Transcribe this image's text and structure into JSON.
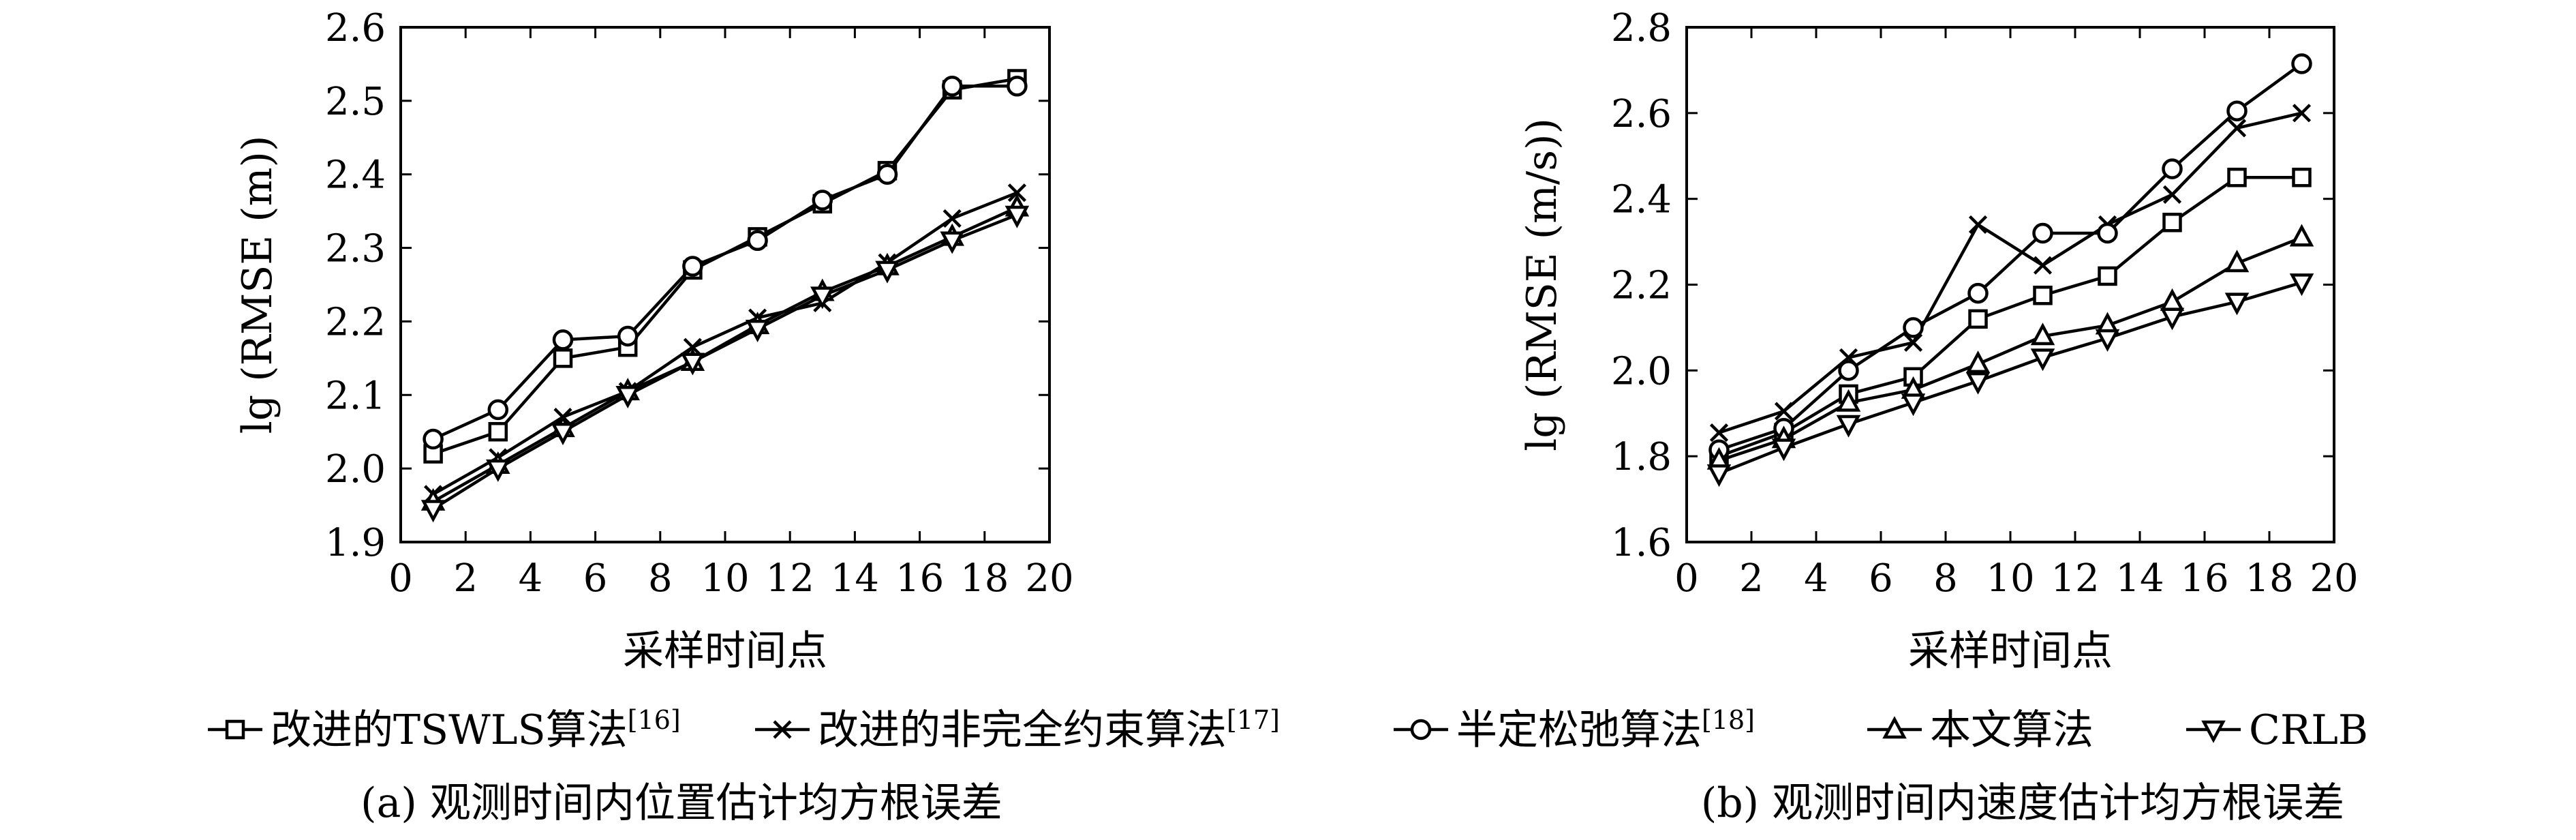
{
  "legend": [
    {
      "key": "s1",
      "label": "改进的TSWLS算法",
      "ref": "[16]",
      "marker": "square"
    },
    {
      "key": "s2",
      "label": "改进的非完全约束算法",
      "ref": "[17]",
      "marker": "cross"
    },
    {
      "key": "s3",
      "label": "半定松弛算法",
      "ref": "[18]",
      "marker": "circle"
    },
    {
      "key": "s4",
      "label": "本文算法",
      "ref": "",
      "marker": "triangle-up"
    },
    {
      "key": "s5",
      "label": "CRLB",
      "ref": "",
      "marker": "triangle-down"
    }
  ],
  "chart_data": [
    {
      "type": "line",
      "caption": "(a) 观测时间内位置估计均方根误差",
      "xlabel": "采样时间点",
      "ylabel": "lg (RMSE (m))",
      "xlim": [
        0,
        20
      ],
      "ylim": [
        1.9,
        2.6
      ],
      "xticks": [
        "0",
        "2",
        "4",
        "6",
        "8",
        "10",
        "12",
        "14",
        "16",
        "18",
        "20"
      ],
      "yticks": [
        "1.9",
        "2.0",
        "2.1",
        "2.2",
        "2.3",
        "2.4",
        "2.5",
        "2.6"
      ],
      "x": [
        1,
        3,
        5,
        7,
        9,
        11,
        13,
        15,
        17,
        19
      ],
      "series": [
        {
          "key": "s1",
          "values": [
            2.02,
            2.05,
            2.15,
            2.165,
            2.27,
            2.315,
            2.36,
            2.405,
            2.515,
            2.53
          ]
        },
        {
          "key": "s2",
          "values": [
            1.965,
            2.015,
            2.07,
            2.105,
            2.165,
            2.205,
            2.225,
            2.28,
            2.34,
            2.375
          ]
        },
        {
          "key": "s3",
          "values": [
            2.04,
            2.08,
            2.175,
            2.18,
            2.275,
            2.31,
            2.365,
            2.4,
            2.52,
            2.52
          ]
        },
        {
          "key": "s4",
          "values": [
            1.955,
            2.005,
            2.055,
            2.105,
            2.145,
            2.195,
            2.24,
            2.275,
            2.315,
            2.355
          ]
        },
        {
          "key": "s5",
          "values": [
            1.945,
            2.0,
            2.05,
            2.1,
            2.145,
            2.19,
            2.235,
            2.27,
            2.31,
            2.345
          ]
        }
      ]
    },
    {
      "type": "line",
      "caption": "(b) 观测时间内速度估计均方根误差",
      "xlabel": "采样时间点",
      "ylabel": "lg (RMSE (m/s))",
      "xlim": [
        0,
        20
      ],
      "ylim": [
        1.6,
        2.8
      ],
      "xticks": [
        "0",
        "2",
        "4",
        "6",
        "8",
        "10",
        "12",
        "14",
        "16",
        "18",
        "20"
      ],
      "yticks": [
        "1.6",
        "1.8",
        "2.0",
        "2.2",
        "2.4",
        "2.6",
        "2.8"
      ],
      "x": [
        1,
        3,
        5,
        7,
        9,
        11,
        13,
        15,
        17,
        19
      ],
      "series": [
        {
          "key": "s1",
          "values": [
            1.8,
            1.855,
            1.945,
            1.985,
            2.12,
            2.175,
            2.22,
            2.345,
            2.45,
            2.45
          ]
        },
        {
          "key": "s2",
          "values": [
            1.855,
            1.905,
            2.03,
            2.065,
            2.34,
            2.245,
            2.34,
            2.41,
            2.565,
            2.6
          ]
        },
        {
          "key": "s3",
          "values": [
            1.815,
            1.865,
            2.0,
            2.1,
            2.18,
            2.32,
            2.32,
            2.47,
            2.605,
            2.715
          ]
        },
        {
          "key": "s4",
          "values": [
            1.79,
            1.84,
            1.925,
            1.955,
            2.015,
            2.08,
            2.105,
            2.16,
            2.25,
            2.31
          ]
        },
        {
          "key": "s5",
          "values": [
            1.76,
            1.82,
            1.875,
            1.925,
            1.975,
            2.03,
            2.075,
            2.125,
            2.16,
            2.205
          ]
        }
      ]
    }
  ]
}
